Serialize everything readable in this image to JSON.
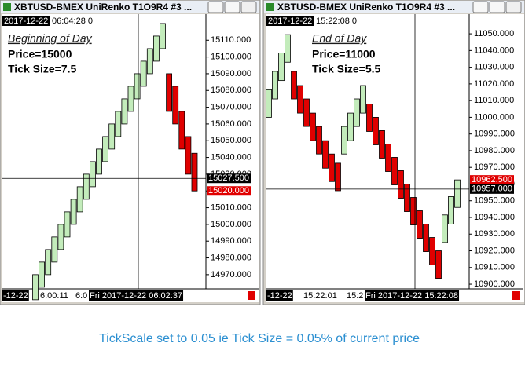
{
  "windows": [
    {
      "title": "XBTUSD-BMEX  UniRenko T1O9R4  #3 ...",
      "header": {
        "date": "2017-12-22",
        "time": "06:04:28 0"
      },
      "notes": {
        "heading": "Beginning of Day",
        "price": "Price=15000",
        "tick": "Tick Size=7.5"
      },
      "chart": {
        "type": "renko",
        "ylim": [
          14961.5,
          15125.6
        ],
        "up_color": "#c3ecbb",
        "down_color": "#e00000",
        "yticks": [
          {
            "value": 14970,
            "label": "14970.000"
          },
          {
            "value": 14980,
            "label": "14980.000"
          },
          {
            "value": 14990,
            "label": "14990.000"
          },
          {
            "value": 15000,
            "label": "15000.000"
          },
          {
            "value": 15010,
            "label": "15010.000"
          },
          {
            "value": 15020,
            "label": "15020.000"
          },
          {
            "value": 15030,
            "label": "15030.000"
          },
          {
            "value": 15040,
            "label": "15040.000"
          },
          {
            "value": 15050,
            "label": "15050.000"
          },
          {
            "value": 15060,
            "label": "15060.000"
          },
          {
            "value": 15070,
            "label": "15070.000"
          },
          {
            "value": 15080,
            "label": "15080.000"
          },
          {
            "value": 15090,
            "label": "15090.000"
          },
          {
            "value": 15100,
            "label": "15100.000"
          },
          {
            "value": 15110,
            "label": "15110.000"
          }
        ],
        "bricks": [
          {
            "open": 14955,
            "close": 14970
          },
          {
            "open": 14962.5,
            "close": 14977.5
          },
          {
            "open": 14970,
            "close": 14985
          },
          {
            "open": 14977.5,
            "close": 14992.5
          },
          {
            "open": 14985,
            "close": 15000
          },
          {
            "open": 14992.5,
            "close": 15007.5
          },
          {
            "open": 15000,
            "close": 15015
          },
          {
            "open": 15007.5,
            "close": 15022.5
          },
          {
            "open": 15015,
            "close": 15030
          },
          {
            "open": 15022.5,
            "close": 15037.5
          },
          {
            "open": 15030,
            "close": 15045
          },
          {
            "open": 15037.5,
            "close": 15052.5
          },
          {
            "open": 15045,
            "close": 15060
          },
          {
            "open": 15052.5,
            "close": 15067.5
          },
          {
            "open": 15060,
            "close": 15075
          },
          {
            "open": 15067.5,
            "close": 15082.5
          },
          {
            "open": 15075,
            "close": 15090
          },
          {
            "open": 15082.5,
            "close": 15097.5
          },
          {
            "open": 15090,
            "close": 15105
          },
          {
            "open": 15097.5,
            "close": 15112.5
          },
          {
            "open": 15105,
            "close": 15120
          },
          {
            "open": 15090,
            "close": 15067.5
          },
          {
            "open": 15082.5,
            "close": 15060
          },
          {
            "open": 15067.5,
            "close": 15045
          },
          {
            "open": 15052.5,
            "close": 15030
          },
          {
            "open": 15042.5,
            "close": 15020
          }
        ],
        "price_labels": [
          {
            "value": 15027.5,
            "label": "15027.500",
            "color": "#000000"
          },
          {
            "value": 15020,
            "label": "15020.000",
            "color": "#e00000"
          }
        ],
        "time_labels": [
          "-12-22",
          "6:00:11",
          "6:0",
          "Fri 2017-12-22 06:02:37"
        ]
      }
    },
    {
      "title": "XBTUSD-BMEX  UniRenko T1O9R4  #3 ...",
      "header": {
        "date": "2017-12-22",
        "time": "15:22:08 0"
      },
      "notes": {
        "heading": "End of Day",
        "price": "Price=11000",
        "tick": "Tick Size=5.5"
      },
      "chart": {
        "type": "renko",
        "ylim": [
          10897.2,
          11061.8
        ],
        "up_color": "#c3ecbb",
        "down_color": "#e00000",
        "yticks": [
          {
            "value": 10900,
            "label": "10900.000"
          },
          {
            "value": 10910,
            "label": "10910.000"
          },
          {
            "value": 10920,
            "label": "10920.000"
          },
          {
            "value": 10930,
            "label": "10930.000"
          },
          {
            "value": 10940,
            "label": "10940.000"
          },
          {
            "value": 10950,
            "label": "10950.000"
          },
          {
            "value": 10960,
            "label": "10960.000"
          },
          {
            "value": 10970,
            "label": "10970.000"
          },
          {
            "value": 10980,
            "label": "10980.000"
          },
          {
            "value": 10990,
            "label": "10990.000"
          },
          {
            "value": 11000,
            "label": "11000.000"
          },
          {
            "value": 11010,
            "label": "11010.000"
          },
          {
            "value": 11020,
            "label": "11020.000"
          },
          {
            "value": 11030,
            "label": "11030.000"
          },
          {
            "value": 11040,
            "label": "11040.000"
          },
          {
            "value": 11050,
            "label": "11050.000"
          }
        ],
        "bricks": [
          {
            "open": 11000,
            "close": 11016.5
          },
          {
            "open": 11011,
            "close": 11027.5
          },
          {
            "open": 11022,
            "close": 11038.5
          },
          {
            "open": 11033,
            "close": 11049.5
          },
          {
            "open": 11027.5,
            "close": 11011
          },
          {
            "open": 11019,
            "close": 11002.5
          },
          {
            "open": 11011,
            "close": 10994.5
          },
          {
            "open": 11002.5,
            "close": 10986
          },
          {
            "open": 10994.5,
            "close": 10978
          },
          {
            "open": 10986,
            "close": 10969.5
          },
          {
            "open": 10978,
            "close": 10961.5
          },
          {
            "open": 10972.5,
            "close": 10956
          },
          {
            "open": 10978,
            "close": 10994.5
          },
          {
            "open": 10986,
            "close": 11002.5
          },
          {
            "open": 10994.5,
            "close": 11011
          },
          {
            "open": 11002.5,
            "close": 11019
          },
          {
            "open": 11008,
            "close": 10991.5
          },
          {
            "open": 11000,
            "close": 10983.5
          },
          {
            "open": 10992,
            "close": 10975.5
          },
          {
            "open": 10984,
            "close": 10967.5
          },
          {
            "open": 10976,
            "close": 10959.5
          },
          {
            "open": 10968,
            "close": 10951.5
          },
          {
            "open": 10960,
            "close": 10943.5
          },
          {
            "open": 10952,
            "close": 10935.5
          },
          {
            "open": 10944,
            "close": 10927.5
          },
          {
            "open": 10936,
            "close": 10919.5
          },
          {
            "open": 10928,
            "close": 10911.5
          },
          {
            "open": 10920,
            "close": 10903.5
          },
          {
            "open": 10925,
            "close": 10941.5
          },
          {
            "open": 10936,
            "close": 10952.5
          },
          {
            "open": 10946,
            "close": 10962.5
          }
        ],
        "price_labels": [
          {
            "value": 10962.5,
            "label": "10962.500",
            "color": "#e00000"
          },
          {
            "value": 10957,
            "label": "10957.000",
            "color": "#000000"
          }
        ],
        "time_labels": [
          "-12-22",
          "15:22:01",
          "15:2",
          "Fri 2017-12-22 15:22:08"
        ]
      }
    }
  ],
  "caption": "TickScale set to 0.05 ie Tick Size = 0.05% of current price"
}
